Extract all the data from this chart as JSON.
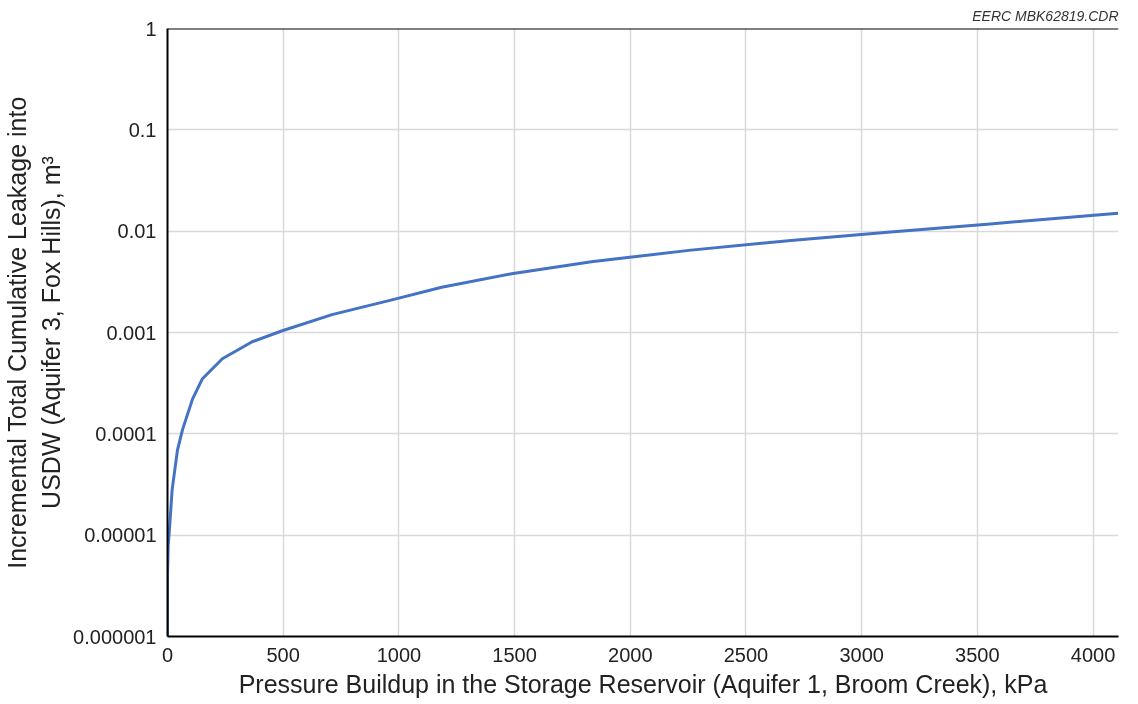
{
  "chart_data": {
    "type": "line",
    "xlabel": "Pressure Buildup in the Storage Reservoir (Aquifer 1, Broom Creek), kPa",
    "ylabel": "Incremental Total Cumulative Leakage into\nUSDW (Aquifer 3, Fox Hills), m³",
    "annotations": [
      "EERC MBK62819.CDR"
    ],
    "log": "y",
    "grid": true,
    "marker": "none",
    "line_style": "solid",
    "xlim": [
      0,
      4110
    ],
    "xticks": [
      0,
      500,
      1000,
      1500,
      2000,
      2500,
      3000,
      3500,
      4000
    ],
    "ylim": [
      1e-06,
      1
    ],
    "yticks": [
      {
        "value": 1e-06,
        "label": "0.000001"
      },
      {
        "value": 1e-05,
        "label": "0.00001"
      },
      {
        "value": 0.0001,
        "label": "0.0001"
      },
      {
        "value": 0.001,
        "label": "0.001"
      },
      {
        "value": 0.01,
        "label": "0.01"
      },
      {
        "value": 0.1,
        "label": "0.1"
      },
      {
        "value": 1,
        "label": "1"
      }
    ],
    "series": [
      {
        "color": "#4472c4",
        "x": [
          0,
          0,
          3,
          8,
          20,
          43,
          65,
          108,
          151,
          237,
          366,
          496,
          711,
          970,
          1185,
          1487,
          1832,
          2263,
          2694,
          3125,
          3556,
          4108
        ],
        "values": [
          1e-06,
          4e-06,
          8e-06,
          1.1e-05,
          2.8e-05,
          6.9e-05,
          0.00011,
          0.00022,
          0.00035,
          0.00055,
          0.00081,
          0.00104,
          0.0015,
          0.0021,
          0.0028,
          0.0038,
          0.005,
          0.0065,
          0.0081,
          0.0098,
          0.0118,
          0.015
        ]
      }
    ]
  }
}
